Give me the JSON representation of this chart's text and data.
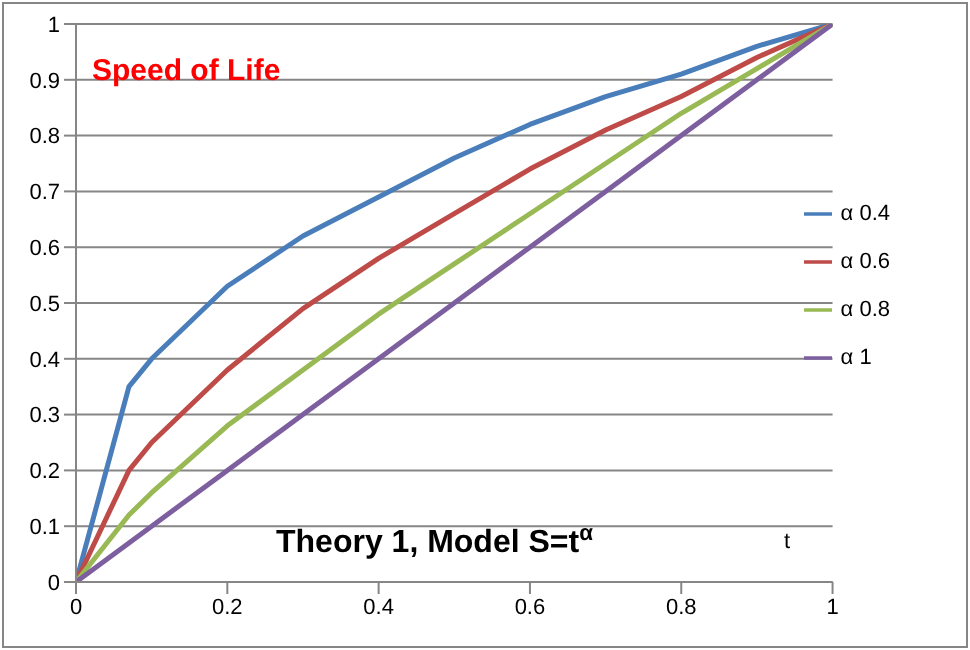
{
  "chart_data": {
    "type": "line",
    "title": "Speed of Life",
    "xlabel": "t",
    "annotations": [
      "Theory 1, Model  S=t$^{α}$"
    ],
    "x": [
      0,
      0.07,
      0.1,
      0.2,
      0.3,
      0.4,
      0.5,
      0.6,
      0.7,
      0.8,
      0.9,
      1
    ],
    "series": [
      {
        "name": "α 0.4",
        "color": "#4a7ebb",
        "values": [
          0,
          0.35,
          0.4,
          0.53,
          0.62,
          0.69,
          0.76,
          0.82,
          0.87,
          0.91,
          0.96,
          1
        ]
      },
      {
        "name": "α 0.6",
        "color": "#be4b48",
        "values": [
          0,
          0.2,
          0.25,
          0.38,
          0.49,
          0.58,
          0.66,
          0.74,
          0.81,
          0.87,
          0.94,
          1
        ]
      },
      {
        "name": "α 0.8",
        "color": "#98b954",
        "values": [
          0,
          0.12,
          0.16,
          0.28,
          0.38,
          0.48,
          0.57,
          0.66,
          0.75,
          0.84,
          0.92,
          1
        ]
      },
      {
        "name": "α 1",
        "color": "#7d5fa0",
        "values": [
          0,
          0.07,
          0.1,
          0.2,
          0.3,
          0.4,
          0.5,
          0.6,
          0.7,
          0.8,
          0.9,
          1
        ]
      }
    ],
    "xlim": [
      0,
      1
    ],
    "xticks": [
      0,
      0.2,
      0.4,
      0.6,
      0.8,
      1
    ],
    "ylim": [
      0,
      1
    ],
    "yticks": [
      0,
      0.1,
      0.2,
      0.3,
      0.4,
      0.5,
      0.6,
      0.7,
      0.8,
      0.9,
      1
    ],
    "grid": "y",
    "legend": "right",
    "marker": "none",
    "line_style": "solid"
  }
}
